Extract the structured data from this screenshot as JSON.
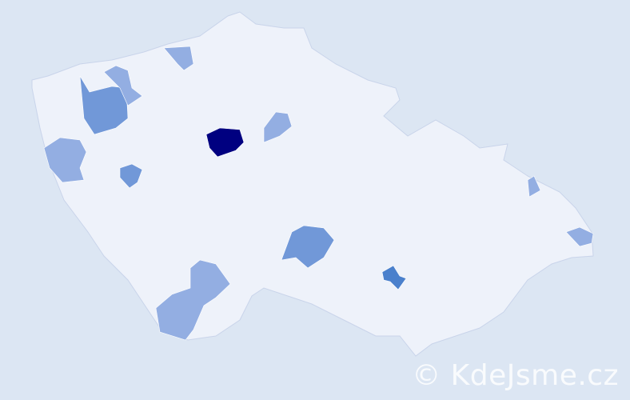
{
  "map": {
    "background_color": "#dce6f3",
    "region_fill": "#eef2fa",
    "region_border": "#c9d4ea",
    "highlighted_regions": [
      {
        "level": "highest",
        "color": "#000080"
      },
      {
        "level": "high",
        "color": "#4a80cc"
      },
      {
        "level": "medium",
        "color": "#7198d8"
      },
      {
        "level": "medium",
        "color": "#7198d8"
      },
      {
        "level": "medium",
        "color": "#7198d8"
      },
      {
        "level": "low",
        "color": "#93aee2"
      },
      {
        "level": "low",
        "color": "#93aee2"
      },
      {
        "level": "low",
        "color": "#93aee2"
      },
      {
        "level": "low",
        "color": "#93aee2"
      },
      {
        "level": "low",
        "color": "#93aee2"
      },
      {
        "level": "low",
        "color": "#93aee2"
      },
      {
        "level": "low",
        "color": "#93aee2"
      }
    ]
  },
  "watermark": "© KdeJsme.cz"
}
